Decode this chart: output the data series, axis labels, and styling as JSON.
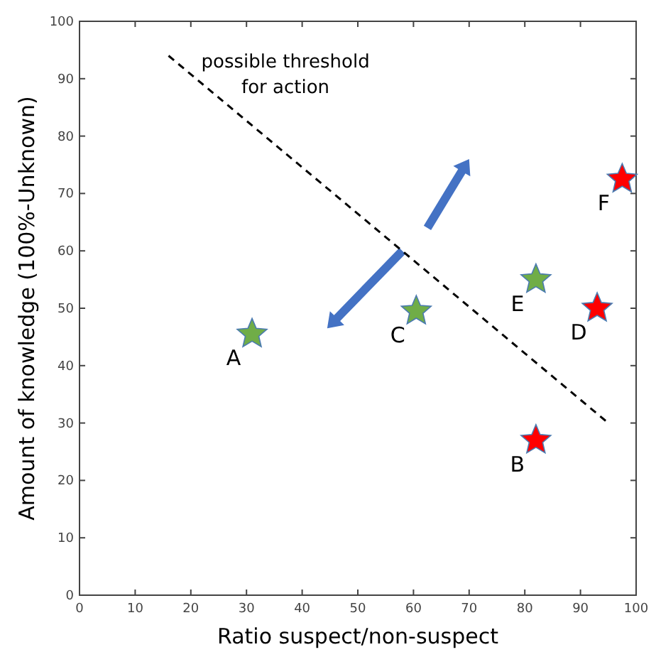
{
  "chart_data": {
    "type": "scatter",
    "xlabel": "Ratio suspect/non-suspect",
    "ylabel": "Amount of knowledge (100%-Unknown)",
    "xlim": [
      0,
      100
    ],
    "ylim": [
      0,
      100
    ],
    "xticks": [
      0,
      10,
      20,
      30,
      40,
      50,
      60,
      70,
      80,
      90,
      100
    ],
    "yticks": [
      0,
      10,
      20,
      30,
      40,
      50,
      60,
      70,
      80,
      90,
      100
    ],
    "grid": false,
    "marker": "star",
    "series": [
      {
        "color": "#70ad47",
        "x": [
          31,
          60.5,
          82
        ],
        "values": [
          45.5,
          49.5,
          55
        ]
      },
      {
        "color": "#ff0000",
        "x": [
          82,
          93,
          97.5
        ],
        "values": [
          27,
          50,
          72.5
        ]
      },
      {
        "type": "line",
        "color": "#000000",
        "line_style": "dashed",
        "marker": "none",
        "x": [
          16,
          95
        ],
        "values": [
          94,
          30
        ]
      }
    ],
    "annotations": [
      {
        "text": "A",
        "x": 31,
        "y": 45.5
      },
      {
        "text": "C",
        "x": 60.5,
        "y": 49.5
      },
      {
        "text": "E",
        "x": 82,
        "y": 55
      },
      {
        "text": "B",
        "x": 82,
        "y": 27
      },
      {
        "text": "D",
        "x": 93,
        "y": 50
      },
      {
        "text": "F",
        "x": 97.5,
        "y": 72.5
      },
      "possible threshold\nfor action"
    ]
  }
}
